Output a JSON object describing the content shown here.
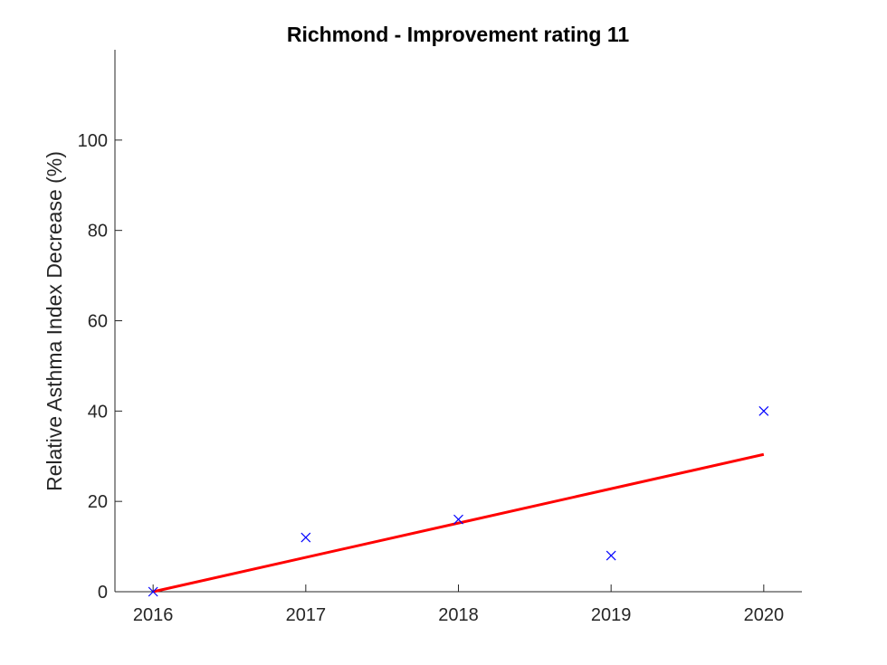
{
  "chart_data": {
    "type": "scatter",
    "title": "Richmond - Improvement rating 11",
    "xlabel": "",
    "ylabel": "Relative Asthma Index Decrease (%)",
    "xlim": [
      2015.75,
      2020.25
    ],
    "ylim": [
      0,
      120
    ],
    "xticks": [
      2016,
      2017,
      2018,
      2019,
      2020
    ],
    "yticks": [
      0,
      20,
      40,
      60,
      80,
      100
    ],
    "grid": false,
    "series": [
      {
        "kind": "markers",
        "marker": "x",
        "color": "#0000ff",
        "x": [
          2016,
          2017,
          2018,
          2019,
          2020
        ],
        "y": [
          0,
          12,
          16,
          8,
          40
        ]
      },
      {
        "kind": "line",
        "color": "#ff0000",
        "x": [
          2016,
          2020
        ],
        "y": [
          0,
          30.4
        ]
      }
    ]
  }
}
